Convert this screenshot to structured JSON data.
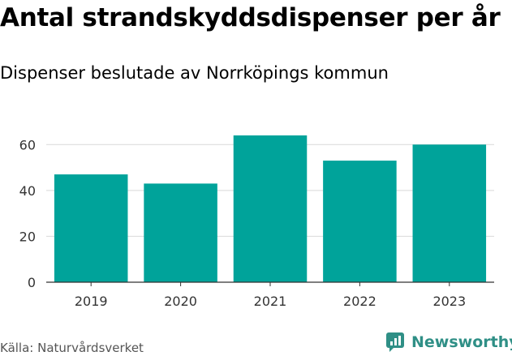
{
  "colors": {
    "bar": "#00A39A",
    "grid": "#d9d9d9",
    "axis": "#333333",
    "tick_text": "#333333",
    "brand": "#2f8f86"
  },
  "source_text": "Källa: Naturvårdsverket",
  "brand": {
    "name": "Newsworthy",
    "icon": "newsworthy-logo-icon"
  },
  "chart_data": {
    "type": "bar",
    "title": "Antal strandskyddsdispenser per år",
    "subtitle": "Dispenser beslutade av Norrköpings kommun",
    "categories": [
      "2019",
      "2020",
      "2021",
      "2022",
      "2023"
    ],
    "values": [
      47,
      43,
      64,
      53,
      60
    ],
    "xlabel": "",
    "ylabel": "",
    "ylim": [
      0,
      70
    ],
    "yticks": [
      0,
      20,
      40,
      60
    ],
    "grid": true,
    "legend": "none"
  }
}
